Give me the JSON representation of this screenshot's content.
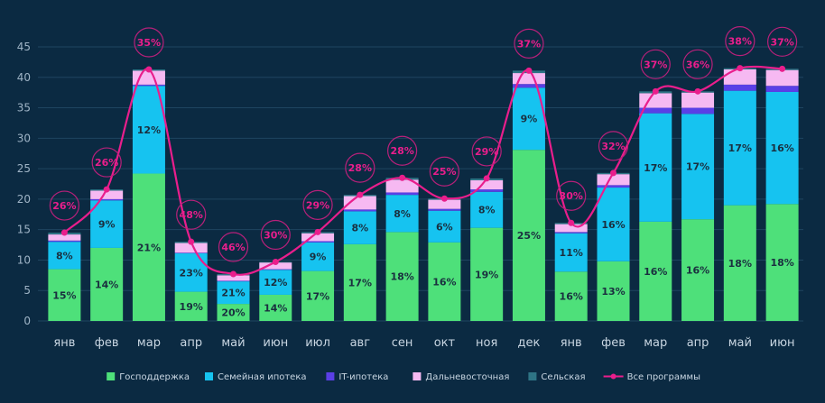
{
  "chart_data": {
    "type": "bar",
    "stacked": true,
    "ylim": [
      0,
      45
    ],
    "yticks": [
      0,
      5,
      10,
      15,
      20,
      25,
      30,
      35,
      40,
      45
    ],
    "grid": true,
    "legend_position": "bottom-center",
    "categories": [
      "янв",
      "фев",
      "мар",
      "апр",
      "май",
      "июн",
      "июл",
      "авг",
      "сен",
      "окт",
      "ноя",
      "дек",
      "янв",
      "фев",
      "мар",
      "апр",
      "май",
      "июн"
    ],
    "series": [
      {
        "name": "Господдержка",
        "color": "#4ee07a",
        "values": [
          8.5,
          12,
          24.2,
          4.8,
          2.8,
          4.3,
          8.2,
          12.6,
          14.6,
          12.9,
          15.3,
          28.1,
          8.1,
          9.8,
          16.3,
          16.7,
          19.0,
          19.2
        ],
        "labels": [
          "15%",
          "14%",
          "21%",
          "19%",
          "20%",
          "14%",
          "17%",
          "17%",
          "18%",
          "16%",
          "19%",
          "25%",
          "16%",
          "13%",
          "16%",
          "16%",
          "18%",
          "18%"
        ]
      },
      {
        "name": "Семейная ипотека",
        "color": "#16c3f0",
        "values": [
          4.5,
          7.8,
          14.4,
          6.3,
          3.7,
          4.1,
          4.7,
          5.4,
          6.1,
          5.2,
          5.9,
          10.2,
          6.3,
          12.1,
          17.8,
          17.3,
          18.8,
          18.4
        ],
        "labels": [
          "8%",
          "9%",
          "12%",
          "23%",
          "21%",
          "12%",
          "9%",
          "8%",
          "8%",
          "6%",
          "8%",
          "9%",
          "11%",
          "16%",
          "17%",
          "17%",
          "17%",
          "16%"
        ]
      },
      {
        "name": "IT-ипотека",
        "color": "#5a3fe6",
        "values": [
          0.2,
          0.2,
          0.2,
          0.1,
          0.1,
          0.1,
          0.2,
          0.3,
          0.4,
          0.3,
          0.4,
          0.6,
          0.2,
          0.4,
          0.9,
          1.0,
          1.0,
          1.0
        ],
        "labels": []
      },
      {
        "name": "Дальневосточная",
        "color": "#f6b9f2",
        "values": [
          1.0,
          1.4,
          2.3,
          1.6,
          0.9,
          1.1,
          1.3,
          2.2,
          2.1,
          1.5,
          1.5,
          1.8,
          1.3,
          1.8,
          2.4,
          2.5,
          2.5,
          2.6
        ],
        "labels": []
      },
      {
        "name": "Сельская",
        "color": "#2e7485",
        "values": [
          0.3,
          0.2,
          0.2,
          0.2,
          0.2,
          0.1,
          0.2,
          0.2,
          0.3,
          0.2,
          0.3,
          0.4,
          0.2,
          0.2,
          0.3,
          0.2,
          0.2,
          0.2
        ],
        "labels": []
      }
    ],
    "line": {
      "name": "Все программы",
      "color": "#e91e8c",
      "labels": [
        "26%",
        "26%",
        "35%",
        "48%",
        "46%",
        "30%",
        "29%",
        "28%",
        "28%",
        "25%",
        "29%",
        "37%",
        "30%",
        "32%",
        "37%",
        "36%",
        "38%",
        "37%"
      ]
    }
  }
}
